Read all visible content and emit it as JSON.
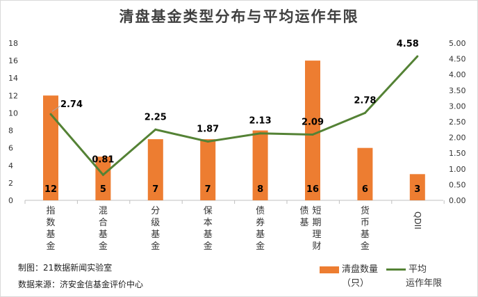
{
  "chart_data": {
    "type": "bar+line",
    "title": "清盘基金类型分布与平均运作年限",
    "categories": [
      "指数基金",
      "混合基金",
      "分级基金",
      "保本基金",
      "债券基金",
      "短期理财债基",
      "货币基金",
      "QDII"
    ],
    "category_lines": [
      [
        "指",
        "数",
        "基",
        "金"
      ],
      [
        "混",
        "合",
        "基",
        "金"
      ],
      [
        "分",
        "级",
        "基",
        "金"
      ],
      [
        "保",
        "本",
        "基",
        "金"
      ],
      [
        "债",
        "券",
        "基",
        "金"
      ],
      [
        "短",
        "期",
        "理",
        "财"
      ],
      [
        "货",
        "币",
        "基",
        "金"
      ],
      [
        "QDII"
      ]
    ],
    "category_extra": {
      "index": 5,
      "lines": [
        "债",
        "基"
      ]
    },
    "series": [
      {
        "name": "清盘数量（只）",
        "type": "bar",
        "axis": "left",
        "color": "#ed7d31",
        "values": [
          12,
          5,
          7,
          7,
          8,
          16,
          6,
          3
        ]
      },
      {
        "name": "平均运作年限",
        "type": "line",
        "axis": "right",
        "color": "#548235",
        "values": [
          2.74,
          0.81,
          2.25,
          1.87,
          2.13,
          2.09,
          2.78,
          4.58
        ]
      }
    ],
    "left_axis": {
      "range": [
        0,
        18
      ],
      "ticks": [
        "0",
        "2",
        "4",
        "6",
        "8",
        "10",
        "12",
        "14",
        "16",
        "18"
      ]
    },
    "right_axis": {
      "range": [
        0,
        5
      ],
      "ticks": [
        "0.00",
        "0.50",
        "1.00",
        "1.50",
        "2.00",
        "2.50",
        "3.00",
        "3.50",
        "4.00",
        "4.50",
        "5.00"
      ]
    },
    "bar_labels": [
      "12",
      "5",
      "7",
      "7",
      "8",
      "16",
      "6",
      "3"
    ],
    "line_labels": [
      "2.74",
      "0.81",
      "2.25",
      "1.87",
      "2.13",
      "2.09",
      "2.78",
      "4.58"
    ],
    "grid": false,
    "legend_position": "bottom-right"
  },
  "legend": {
    "bar_line1": "清盘数量",
    "bar_line2": "（只）",
    "line_line1": "平均",
    "line_line2": "运作年限"
  },
  "credits": {
    "maker": "制图：21数据新闻实验室",
    "source": "数据来源：济安金信基金评价中心"
  }
}
